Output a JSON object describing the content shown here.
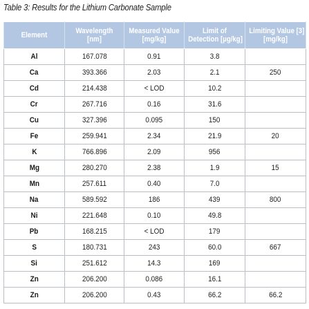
{
  "caption": "Table 3: Results for the Lithium Carbonate Sample",
  "table": {
    "headers": [
      {
        "lines": [
          "Element"
        ]
      },
      {
        "lines": [
          "Wavelength",
          "[nm]"
        ]
      },
      {
        "lines": [
          "Measured Value",
          "[mg/kg]"
        ]
      },
      {
        "lines": [
          "Limit of",
          "Detection [µg/kg]"
        ]
      },
      {
        "lines": [
          "Limiting Value [3]",
          "[mg/kg]"
        ]
      }
    ],
    "rows": [
      {
        "element": "Al",
        "wavelength": "167.078",
        "measured": "0.91",
        "lod": "3.8",
        "limit": ""
      },
      {
        "element": "Ca",
        "wavelength": "393.366",
        "measured": "2.03",
        "lod": "2.1",
        "limit": "250"
      },
      {
        "element": "Cd",
        "wavelength": "214.438",
        "measured": "< LOD",
        "lod": "10.2",
        "limit": ""
      },
      {
        "element": "Cr",
        "wavelength": "267.716",
        "measured": "0.16",
        "lod": "31.6",
        "limit": ""
      },
      {
        "element": "Cu",
        "wavelength": "327.396",
        "measured": "0.095",
        "lod": "150",
        "limit": ""
      },
      {
        "element": "Fe",
        "wavelength": "259.941",
        "measured": "2.34",
        "lod": "21.9",
        "limit": "20"
      },
      {
        "element": "K",
        "wavelength": "766.896",
        "measured": "2.09",
        "lod": "956",
        "limit": ""
      },
      {
        "element": "Mg",
        "wavelength": "280.270",
        "measured": "2.38",
        "lod": "1.9",
        "limit": "15"
      },
      {
        "element": "Mn",
        "wavelength": "257.611",
        "measured": "0.40",
        "lod": "7.0",
        "limit": ""
      },
      {
        "element": "Na",
        "wavelength": "589.592",
        "measured": "186",
        "lod": "439",
        "limit": "800"
      },
      {
        "element": "Ni",
        "wavelength": "221.648",
        "measured": "0.10",
        "lod": "49.8",
        "limit": ""
      },
      {
        "element": "Pb",
        "wavelength": "168.215",
        "measured": "< LOD",
        "lod": "179",
        "limit": ""
      },
      {
        "element": "S",
        "wavelength": "180.731",
        "measured": "243",
        "lod": "60.0",
        "limit": "667"
      },
      {
        "element": "Si",
        "wavelength": "251.612",
        "measured": "14.3",
        "lod": "169",
        "limit": ""
      },
      {
        "element": "Zn",
        "wavelength": "206.200",
        "measured": "0.086",
        "lod": "16.1",
        "limit": ""
      },
      {
        "element": "Zn",
        "wavelength": "206.200",
        "measured": "0.43",
        "lod": "66.2",
        "limit": "66.2"
      }
    ]
  }
}
